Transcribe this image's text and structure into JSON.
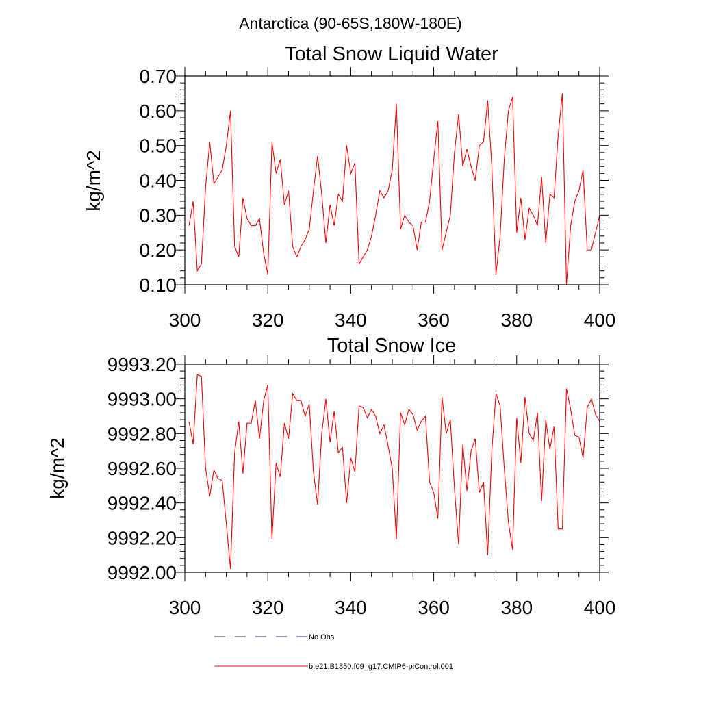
{
  "figure": {
    "title": "Antarctica (90-65S,180W-180E)"
  },
  "chart_data": [
    {
      "type": "line",
      "title": "Total Snow Liquid Water",
      "xlabel": "",
      "ylabel": "kg/m^2",
      "xlim": [
        300,
        400
      ],
      "ylim": [
        0.1,
        0.7
      ],
      "xticks": [
        300,
        320,
        340,
        360,
        380,
        400
      ],
      "xtick_labels": [
        "300",
        "320",
        "340",
        "360",
        "380",
        "400"
      ],
      "yticks": [
        0.1,
        0.2,
        0.3,
        0.4,
        0.5,
        0.6,
        0.7
      ],
      "ytick_labels": [
        "0.10",
        "0.20",
        "0.30",
        "0.40",
        "0.50",
        "0.60",
        "0.70"
      ],
      "grid": false,
      "color": "#ff0000",
      "x": [
        301,
        302,
        303,
        304,
        305,
        306,
        307,
        308,
        309,
        310,
        311,
        312,
        313,
        314,
        315,
        316,
        317,
        318,
        319,
        320,
        321,
        322,
        323,
        324,
        325,
        326,
        327,
        328,
        329,
        330,
        331,
        332,
        333,
        334,
        335,
        336,
        337,
        338,
        339,
        340,
        341,
        342,
        343,
        344,
        345,
        346,
        347,
        348,
        349,
        350,
        351,
        352,
        353,
        354,
        355,
        356,
        357,
        358,
        359,
        360,
        361,
        362,
        363,
        364,
        365,
        366,
        367,
        368,
        369,
        370,
        371,
        372,
        373,
        374,
        375,
        376,
        377,
        378,
        379,
        380,
        381,
        382,
        383,
        384,
        385,
        386,
        387,
        388,
        389,
        390,
        391,
        392,
        393,
        394,
        395,
        396,
        397,
        398,
        399,
        400
      ],
      "y": [
        0.27,
        0.34,
        0.14,
        0.16,
        0.38,
        0.51,
        0.39,
        0.41,
        0.43,
        0.5,
        0.6,
        0.21,
        0.18,
        0.35,
        0.29,
        0.27,
        0.27,
        0.29,
        0.19,
        0.13,
        0.51,
        0.42,
        0.46,
        0.33,
        0.37,
        0.21,
        0.18,
        0.21,
        0.23,
        0.26,
        0.37,
        0.47,
        0.36,
        0.22,
        0.33,
        0.27,
        0.36,
        0.34,
        0.5,
        0.42,
        0.45,
        0.16,
        0.18,
        0.2,
        0.24,
        0.3,
        0.37,
        0.35,
        0.37,
        0.43,
        0.62,
        0.26,
        0.3,
        0.28,
        0.27,
        0.2,
        0.28,
        0.28,
        0.34,
        0.46,
        0.57,
        0.2,
        0.25,
        0.3,
        0.48,
        0.59,
        0.44,
        0.49,
        0.44,
        0.4,
        0.5,
        0.51,
        0.63,
        0.44,
        0.13,
        0.24,
        0.46,
        0.6,
        0.64,
        0.25,
        0.35,
        0.23,
        0.32,
        0.3,
        0.27,
        0.41,
        0.22,
        0.36,
        0.35,
        0.53,
        0.65,
        0.1,
        0.27,
        0.34,
        0.37,
        0.43,
        0.2,
        0.2,
        0.25,
        0.3
      ]
    },
    {
      "type": "line",
      "title": "Total Snow Ice",
      "xlabel": "",
      "ylabel": "kg/m^2",
      "xlim": [
        300,
        400
      ],
      "ylim": [
        9992.0,
        9993.2
      ],
      "xticks": [
        300,
        320,
        340,
        360,
        380,
        400
      ],
      "xtick_labels": [
        "300",
        "320",
        "340",
        "360",
        "380",
        "400"
      ],
      "yticks": [
        9992.0,
        9992.2,
        9992.4,
        9992.6,
        9992.8,
        9993.0,
        9993.2
      ],
      "ytick_labels": [
        "9992.00",
        "9992.20",
        "9992.40",
        "9992.60",
        "9992.80",
        "9993.00",
        "9993.20"
      ],
      "grid": false,
      "color": "#ff0000",
      "x": [
        301,
        302,
        303,
        304,
        305,
        306,
        307,
        308,
        309,
        310,
        311,
        312,
        313,
        314,
        315,
        316,
        317,
        318,
        319,
        320,
        321,
        322,
        323,
        324,
        325,
        326,
        327,
        328,
        329,
        330,
        331,
        332,
        333,
        334,
        335,
        336,
        337,
        338,
        339,
        340,
        341,
        342,
        343,
        344,
        345,
        346,
        347,
        348,
        349,
        350,
        351,
        352,
        353,
        354,
        355,
        356,
        357,
        358,
        359,
        360,
        361,
        362,
        363,
        364,
        365,
        366,
        367,
        368,
        369,
        370,
        371,
        372,
        373,
        374,
        375,
        376,
        377,
        378,
        379,
        380,
        381,
        382,
        383,
        384,
        385,
        386,
        387,
        388,
        389,
        390,
        391,
        392,
        393,
        394,
        395,
        396,
        397,
        398,
        399,
        400
      ],
      "y": [
        9992.87,
        9992.74,
        9993.14,
        9993.13,
        9992.6,
        9992.44,
        9992.59,
        9992.54,
        9992.53,
        9992.28,
        9992.02,
        9992.69,
        9992.87,
        9992.57,
        9992.86,
        9992.86,
        9992.99,
        9992.77,
        9992.99,
        9993.08,
        9992.19,
        9992.63,
        9992.55,
        9992.86,
        9992.77,
        9993.03,
        9992.99,
        9992.99,
        9992.9,
        9992.97,
        9992.58,
        9992.39,
        9992.8,
        9993.0,
        9992.75,
        9992.93,
        9992.69,
        9992.72,
        9992.4,
        9992.66,
        9992.58,
        9992.96,
        9992.95,
        9992.89,
        9992.94,
        9992.9,
        9992.8,
        9992.85,
        9992.73,
        9992.6,
        9992.19,
        9992.92,
        9992.85,
        9992.94,
        9992.91,
        9992.82,
        9992.87,
        9992.9,
        9992.52,
        9992.46,
        9992.31,
        9993.01,
        9992.8,
        9992.88,
        9992.48,
        9992.16,
        9992.74,
        9992.47,
        9992.7,
        9992.77,
        9992.46,
        9992.52,
        9992.1,
        9992.7,
        9993.03,
        9992.96,
        9992.6,
        9992.29,
        9992.13,
        9992.89,
        9992.63,
        9993.01,
        9992.8,
        9992.76,
        9992.92,
        9992.41,
        9992.88,
        9992.71,
        9992.84,
        9992.25,
        9992.25,
        9993.06,
        9992.94,
        9992.79,
        9992.78,
        9992.66,
        9992.95,
        9993.0,
        9992.91,
        9992.87
      ]
    }
  ],
  "legend": {
    "placement": "bottom",
    "items": [
      {
        "label": "No Obs",
        "color": "#3a3a8c",
        "dash": "dashed"
      },
      {
        "label": "b.e21.B1850.f09_g17.CMIP6-piControl.001",
        "color": "#ff0000",
        "dash": "solid"
      }
    ]
  }
}
